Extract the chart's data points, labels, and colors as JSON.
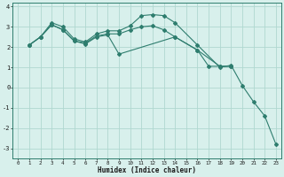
{
  "xlabel": "Humidex (Indice chaleur)",
  "xlim": [
    -0.5,
    23.5
  ],
  "ylim": [
    -3.5,
    4.2
  ],
  "xticks": [
    0,
    1,
    2,
    3,
    4,
    5,
    6,
    7,
    8,
    9,
    10,
    11,
    12,
    13,
    14,
    15,
    16,
    17,
    18,
    19,
    20,
    21,
    22,
    23
  ],
  "yticks": [
    -3,
    -2,
    -1,
    0,
    1,
    2,
    3,
    4
  ],
  "bg_color": "#d8f0ec",
  "grid_color": "#b0d8d0",
  "line_color": "#2e7d6e",
  "lines": [
    {
      "x": [
        1,
        2,
        3,
        4,
        5,
        6,
        7,
        8,
        9,
        10,
        11,
        12,
        13,
        14,
        16,
        18,
        19,
        20,
        21,
        22,
        23
      ],
      "y": [
        2.1,
        2.5,
        3.2,
        3.0,
        2.4,
        2.25,
        2.65,
        2.8,
        2.8,
        3.05,
        3.55,
        3.6,
        3.55,
        3.2,
        2.1,
        1.0,
        1.1,
        0.1,
        -0.7,
        -1.4,
        -2.8
      ]
    },
    {
      "x": [
        1,
        2,
        3,
        4,
        5,
        6,
        7,
        8,
        9,
        10,
        11,
        12,
        13,
        14,
        16,
        18,
        19
      ],
      "y": [
        2.1,
        2.5,
        3.1,
        2.85,
        2.3,
        2.2,
        2.55,
        2.65,
        2.65,
        2.85,
        3.0,
        3.05,
        2.85,
        2.5,
        1.85,
        1.05,
        1.05
      ]
    },
    {
      "x": [
        1,
        2,
        3,
        4,
        5,
        6,
        7,
        8,
        9,
        14,
        16,
        17,
        18,
        19
      ],
      "y": [
        2.1,
        2.5,
        3.1,
        2.85,
        2.3,
        2.15,
        2.5,
        2.6,
        1.65,
        2.5,
        1.85,
        1.05,
        1.05,
        1.05
      ]
    }
  ]
}
